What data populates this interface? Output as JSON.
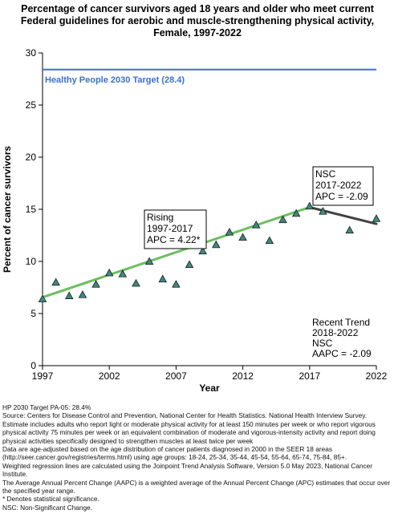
{
  "title_lines": [
    "Percentage of cancer survivors aged 18 years and older who meet current",
    "Federal guidelines for aerobic and muscle-strengthening physical activity,",
    "Female,  1997-2022"
  ],
  "chart_data": {
    "type": "scatter",
    "xlabel": "Year",
    "ylabel": "Percent of cancer survivors",
    "xlim": [
      1997,
      2022
    ],
    "ylim": [
      0,
      30
    ],
    "x_ticks": [
      1997,
      2002,
      2007,
      2012,
      2017,
      2022
    ],
    "y_ticks": [
      0,
      5,
      10,
      15,
      20,
      25,
      30
    ],
    "grid": false,
    "points": [
      {
        "x": 1997,
        "y": 6.4
      },
      {
        "x": 1998,
        "y": 8.0
      },
      {
        "x": 1999,
        "y": 6.7
      },
      {
        "x": 2000,
        "y": 6.8
      },
      {
        "x": 2001,
        "y": 7.8
      },
      {
        "x": 2002,
        "y": 8.9
      },
      {
        "x": 2003,
        "y": 8.8
      },
      {
        "x": 2004,
        "y": 7.9
      },
      {
        "x": 2005,
        "y": 10.0
      },
      {
        "x": 2006,
        "y": 8.3
      },
      {
        "x": 2007,
        "y": 7.8
      },
      {
        "x": 2008,
        "y": 9.7
      },
      {
        "x": 2009,
        "y": 11.0
      },
      {
        "x": 2010,
        "y": 11.6
      },
      {
        "x": 2011,
        "y": 12.8
      },
      {
        "x": 2012,
        "y": 12.3
      },
      {
        "x": 2013,
        "y": 13.5
      },
      {
        "x": 2014,
        "y": 12.0
      },
      {
        "x": 2015,
        "y": 14.0
      },
      {
        "x": 2016,
        "y": 14.6
      },
      {
        "x": 2017,
        "y": 15.3
      },
      {
        "x": 2018,
        "y": 14.8
      },
      {
        "x": 2020,
        "y": 13.0
      },
      {
        "x": 2022,
        "y": 14.1
      }
    ],
    "trend_segments": [
      {
        "start": [
          1997,
          6.55
        ],
        "end": [
          2017,
          15.2
        ],
        "color": "#6abf5e"
      },
      {
        "start": [
          2017,
          15.2
        ],
        "end": [
          2022,
          13.6
        ],
        "color": "#404040"
      }
    ],
    "target": {
      "label": "Healthy People 2030 Target (28.4)",
      "value": 28.4,
      "color": "#3a6fd1"
    },
    "annotations": [
      {
        "lines": [
          "Rising",
          "1997-2017",
          "APC =  4.22*"
        ],
        "border": true
      },
      {
        "lines": [
          "NSC",
          "2017-2022",
          "APC = -2.09"
        ],
        "border": true
      },
      {
        "lines": [
          "Recent Trend",
          "2018-2022",
          "NSC",
          "AAPC = -2.09"
        ],
        "border": false
      }
    ],
    "marker_color": "#3d8a80"
  },
  "footnotes": [
    "HP 2030 Target PA-05: 28.4%",
    "Source: Centers for Disease Control and Prevention, National Center for Health Statistics. National Health Interview Survey.",
    "Estimate includes adults who report light or moderate physical activity for at least 150 minutes per week or who report vigorous physical activity 75 minutes per week or an equivalent combination of moderate and vigorous-intensity activity and report doing physical activities specifically designed to strengthen muscles at least twice per week",
    "Data are age-adjusted based on the age distribution of cancer patients diagnosed in 2000 in the SEER 18 areas (http://seer.cancer.gov/registries/terms.html) using age groups: 18-24, 25-34, 35-44, 45-54, 55-64, 65-74, 75-84, 85+.",
    "Weighted regression lines are calculated using the Joinpoint Trend Analysis Software, Version 5.0 May 2023, National Cancer Institute.",
    "The Average Annual Percent Change (AAPC) is a weighted average of the Annual Percent Change (APC) estimates that occur over the specified year range.",
    "* Denotes statistical significance.",
    "NSC: Non-Significant Change."
  ]
}
